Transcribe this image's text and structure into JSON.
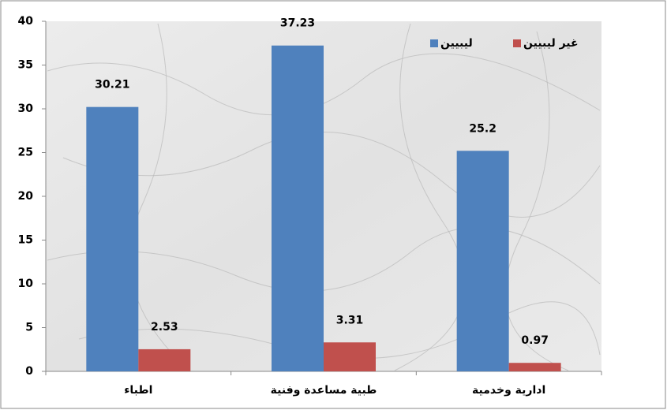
{
  "chart_data": {
    "type": "bar",
    "categories": [
      "اطباء",
      "طبية مساعدة وفنية",
      "ادارية وخدمية"
    ],
    "series": [
      {
        "name": "ليبيين",
        "color": "#4f81bd",
        "values": [
          30.21,
          37.23,
          25.2
        ]
      },
      {
        "name": "غير ليبيين",
        "color": "#c0504d",
        "values": [
          2.53,
          3.31,
          0.97
        ]
      }
    ],
    "ylim": [
      0,
      40
    ],
    "yticks": [
      0,
      5,
      10,
      15,
      20,
      25,
      30,
      35,
      40
    ],
    "legend": "top-right"
  }
}
